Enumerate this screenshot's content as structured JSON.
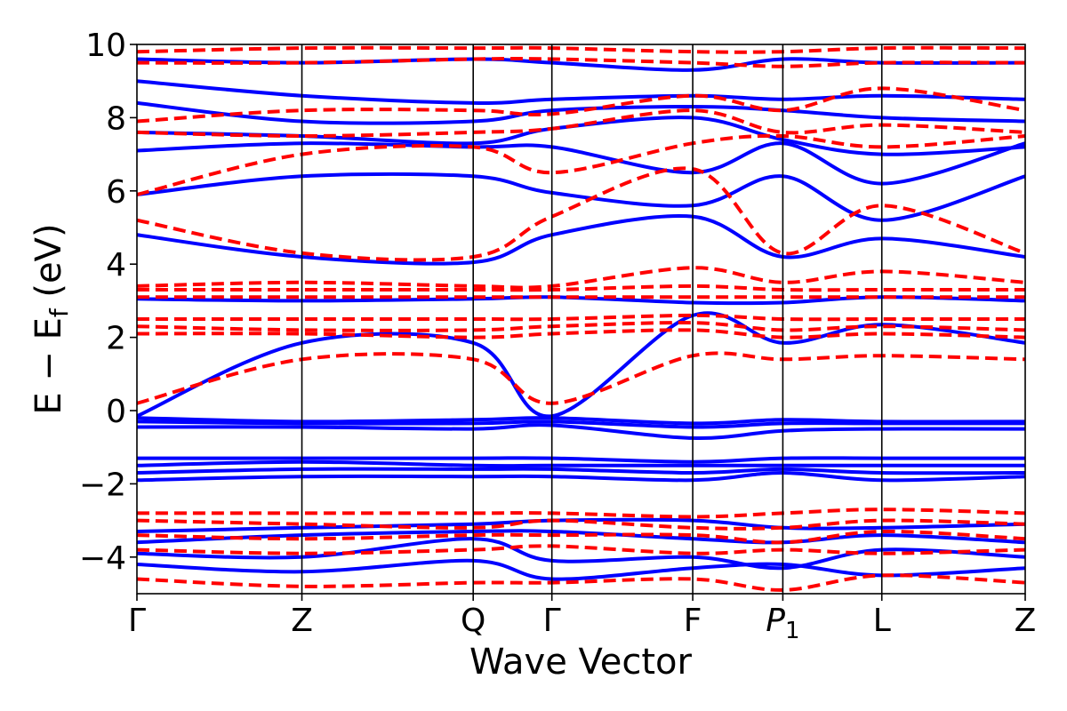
{
  "chart_data": {
    "type": "line",
    "xlabel": "Wave Vector",
    "ylabel_main": "E − E",
    "ylabel_sub": "f",
    "ylabel_unit": " (eV)",
    "ylim": [
      -5,
      10
    ],
    "yticks": [
      {
        "value": 10,
        "label": "10"
      },
      {
        "value": 8,
        "label": "8"
      },
      {
        "value": 6,
        "label": "6"
      },
      {
        "value": 4,
        "label": "4"
      },
      {
        "value": 2,
        "label": "2"
      },
      {
        "value": 0,
        "label": "0"
      },
      {
        "value": -2,
        "label": "−2"
      },
      {
        "value": -4,
        "label": "−4"
      }
    ],
    "xlim": [
      0,
      7
    ],
    "kpoints": [
      {
        "x": 0.0,
        "label": "Γ",
        "sub": ""
      },
      {
        "x": 1.3,
        "label": "Z",
        "sub": ""
      },
      {
        "x": 2.65,
        "label": "Q",
        "sub": ""
      },
      {
        "x": 3.27,
        "label": "Γ",
        "sub": ""
      },
      {
        "x": 4.38,
        "label": "F",
        "sub": ""
      },
      {
        "x": 5.09,
        "label": "P",
        "sub": "1"
      },
      {
        "x": 5.87,
        "label": "L",
        "sub": ""
      },
      {
        "x": 7.0,
        "label": "Z",
        "sub": ""
      }
    ],
    "grid": false,
    "series": [
      {
        "style": "solid",
        "color": "#0000ff",
        "bands": [
          [
            -4.2,
            -4.4,
            -4.1,
            -4.6,
            -4.3,
            -4.2,
            -4.5,
            -4.3
          ],
          [
            -3.9,
            -4.0,
            -3.5,
            -4.1,
            -4.0,
            -4.3,
            -3.8,
            -4.0
          ],
          [
            -3.6,
            -3.4,
            -3.3,
            -3.3,
            -3.5,
            -3.6,
            -3.4,
            -3.6
          ],
          [
            -3.3,
            -3.2,
            -3.1,
            -3.0,
            -3.0,
            -3.2,
            -3.2,
            -3.1
          ],
          [
            -1.9,
            -1.8,
            -1.8,
            -1.8,
            -1.9,
            -1.7,
            -1.9,
            -1.8
          ],
          [
            -1.7,
            -1.6,
            -1.6,
            -1.6,
            -1.7,
            -1.6,
            -1.7,
            -1.7
          ],
          [
            -1.5,
            -1.4,
            -1.5,
            -1.5,
            -1.5,
            -1.5,
            -1.5,
            -1.5
          ],
          [
            -1.3,
            -1.3,
            -1.3,
            -1.3,
            -1.4,
            -1.3,
            -1.3,
            -1.3
          ],
          [
            -0.45,
            -0.45,
            -0.5,
            -0.4,
            -0.75,
            -0.55,
            -0.5,
            -0.5
          ],
          [
            -0.3,
            -0.35,
            -0.35,
            -0.3,
            -0.45,
            -0.35,
            -0.35,
            -0.35
          ],
          [
            -0.2,
            -0.3,
            -0.25,
            -0.2,
            -0.35,
            -0.25,
            -0.3,
            -0.3
          ],
          [
            -0.15,
            1.85,
            1.85,
            -0.15,
            2.6,
            1.85,
            2.35,
            1.85
          ],
          [
            3.05,
            3.0,
            3.05,
            3.1,
            2.95,
            2.95,
            3.1,
            3.0
          ],
          [
            4.8,
            4.2,
            4.05,
            4.8,
            5.3,
            4.2,
            4.7,
            4.2
          ],
          [
            5.9,
            6.4,
            6.4,
            5.95,
            5.6,
            6.4,
            5.2,
            6.4
          ],
          [
            7.1,
            7.3,
            7.2,
            7.2,
            6.5,
            7.3,
            6.2,
            7.3
          ],
          [
            7.6,
            7.5,
            7.3,
            7.7,
            8.0,
            7.4,
            7.0,
            7.2
          ],
          [
            8.4,
            7.9,
            7.9,
            8.2,
            8.3,
            8.2,
            8.0,
            7.9
          ],
          [
            9.0,
            8.6,
            8.4,
            8.5,
            8.6,
            8.5,
            8.6,
            8.5
          ],
          [
            9.6,
            9.5,
            9.6,
            9.5,
            9.3,
            9.6,
            9.5,
            9.5
          ]
        ]
      },
      {
        "style": "dashed",
        "color": "#ff0000",
        "bands": [
          [
            -4.6,
            -4.8,
            -4.7,
            -4.7,
            -4.6,
            -4.9,
            -4.5,
            -4.7
          ],
          [
            -3.8,
            -3.9,
            -3.8,
            -3.7,
            -3.9,
            -3.8,
            -3.9,
            -3.8
          ],
          [
            -3.4,
            -3.5,
            -3.4,
            -3.4,
            -3.4,
            -3.6,
            -3.3,
            -3.5
          ],
          [
            -3.0,
            -3.1,
            -3.2,
            -3.0,
            -3.2,
            -3.2,
            -3.0,
            -3.1
          ],
          [
            -2.8,
            -2.8,
            -2.8,
            -2.8,
            -2.9,
            -2.8,
            -2.7,
            -2.8
          ],
          [
            0.2,
            1.4,
            1.4,
            0.2,
            1.5,
            1.4,
            1.5,
            1.4
          ],
          [
            2.1,
            2.1,
            2.0,
            2.1,
            2.2,
            2.0,
            2.1,
            2.0
          ],
          [
            2.3,
            2.2,
            2.2,
            2.3,
            2.4,
            2.2,
            2.3,
            2.2
          ],
          [
            2.5,
            2.5,
            2.5,
            2.5,
            2.6,
            2.5,
            2.5,
            2.5
          ],
          [
            3.1,
            3.1,
            3.1,
            3.1,
            3.1,
            3.1,
            3.1,
            3.1
          ],
          [
            3.3,
            3.3,
            3.3,
            3.3,
            3.4,
            3.3,
            3.3,
            3.3
          ],
          [
            3.4,
            3.5,
            3.4,
            3.4,
            3.9,
            3.5,
            3.8,
            3.5
          ],
          [
            5.2,
            4.3,
            4.2,
            5.3,
            6.6,
            4.3,
            5.6,
            4.3
          ],
          [
            5.9,
            7.0,
            7.2,
            6.5,
            7.3,
            7.5,
            7.2,
            7.5
          ],
          [
            7.6,
            7.5,
            7.6,
            7.7,
            8.2,
            7.6,
            7.8,
            7.6
          ],
          [
            7.9,
            8.2,
            8.2,
            8.1,
            8.6,
            8.2,
            8.8,
            8.2
          ],
          [
            9.5,
            9.5,
            9.6,
            9.6,
            9.5,
            9.4,
            9.5,
            9.5
          ],
          [
            9.8,
            9.9,
            9.9,
            9.9,
            9.8,
            9.8,
            9.9,
            9.9
          ]
        ]
      }
    ]
  }
}
